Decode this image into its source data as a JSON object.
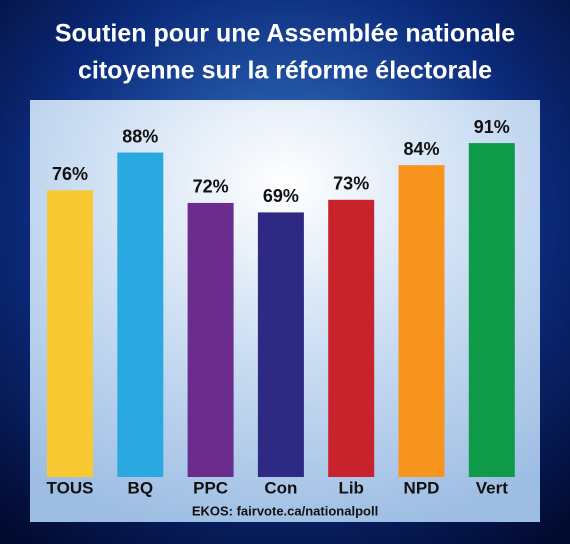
{
  "chart_data": {
    "type": "bar",
    "title": [
      "Soutien pour une Assemblée nationale",
      "citoyenne sur la réforme électorale"
    ],
    "source": "EKOS: fairvote.ca/nationalpoll",
    "categories": [
      "TOUS",
      "BQ",
      "PPC",
      "Con",
      "Lib",
      "NPD",
      "Vert"
    ],
    "values": [
      76,
      88,
      72,
      69,
      73,
      84,
      91
    ],
    "value_labels": [
      "76%",
      "88%",
      "72%",
      "69%",
      "73%",
      "84%",
      "91%"
    ],
    "colors": [
      "#f9c933",
      "#2aa8e0",
      "#6a2d8e",
      "#2e2a84",
      "#c8232c",
      "#f7941d",
      "#0e9a48"
    ]
  }
}
